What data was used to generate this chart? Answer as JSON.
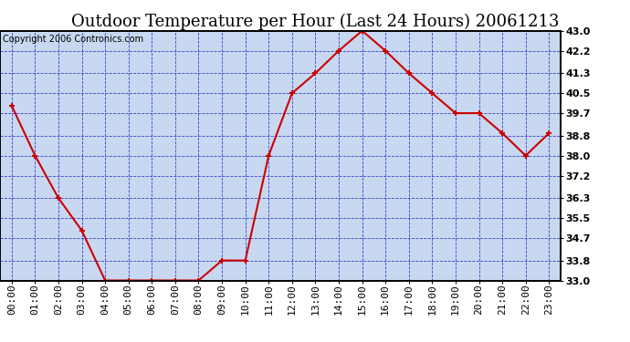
{
  "title": "Outdoor Temperature per Hour (Last 24 Hours) 20061213",
  "copyright": "Copyright 2006 Contronics.com",
  "hours": [
    "00:00",
    "01:00",
    "02:00",
    "03:00",
    "04:00",
    "05:00",
    "06:00",
    "07:00",
    "08:00",
    "09:00",
    "10:00",
    "11:00",
    "12:00",
    "13:00",
    "14:00",
    "15:00",
    "16:00",
    "17:00",
    "18:00",
    "19:00",
    "20:00",
    "21:00",
    "22:00",
    "23:00"
  ],
  "temps": [
    40.0,
    38.0,
    36.3,
    35.0,
    33.0,
    33.0,
    33.0,
    33.0,
    33.0,
    33.8,
    33.8,
    38.0,
    40.5,
    41.3,
    42.2,
    43.0,
    42.2,
    41.3,
    40.5,
    39.7,
    39.7,
    38.9,
    38.0,
    38.9
  ],
  "line_color": "#cc0000",
  "marker_color": "#cc0000",
  "bg_color": "#c8d8f0",
  "grid_color": "#2222cc",
  "border_color": "#000000",
  "title_color": "#000000",
  "ylim": [
    33.0,
    43.0
  ],
  "yticks": [
    33.0,
    33.8,
    34.7,
    35.5,
    36.3,
    37.2,
    38.0,
    38.8,
    39.7,
    40.5,
    41.3,
    42.2,
    43.0
  ],
  "title_fontsize": 13,
  "tick_fontsize": 8,
  "copyright_fontsize": 7
}
